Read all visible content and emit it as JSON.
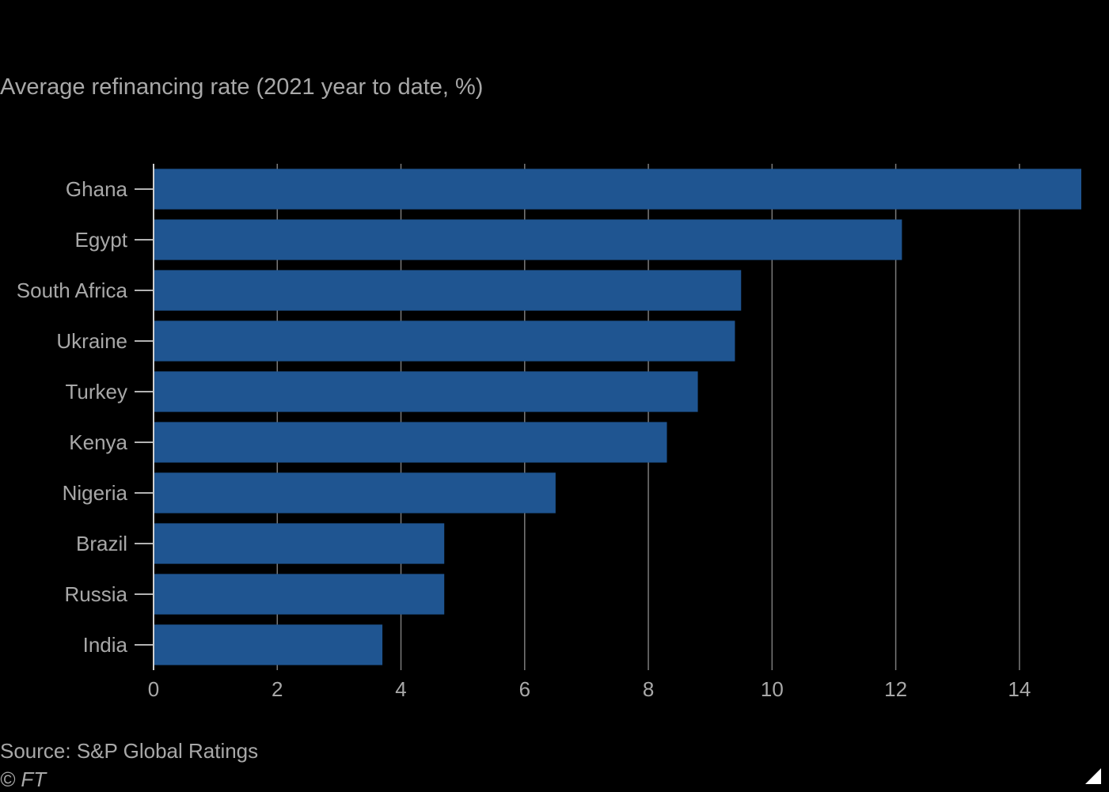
{
  "chart_data": {
    "type": "bar",
    "orientation": "horizontal",
    "title": "",
    "subtitle": "Average refinancing rate (2021 year to date, %)",
    "categories": [
      "Ghana",
      "Egypt",
      "South Africa",
      "Ukraine",
      "Turkey",
      "Kenya",
      "Nigeria",
      "Brazil",
      "Russia",
      "India"
    ],
    "values": [
      15.0,
      12.1,
      9.5,
      9.4,
      8.8,
      8.3,
      6.5,
      4.7,
      4.7,
      3.7
    ],
    "xlabel": "",
    "ylabel": "",
    "xlim": [
      0,
      15
    ],
    "xticks": [
      0,
      2,
      4,
      6,
      8,
      10,
      12,
      14
    ],
    "grid": "vertical",
    "legend": "none",
    "bar_color": "#1f5591",
    "gridline_color": "#7a7a7a",
    "background": "#000000"
  },
  "footer": {
    "source": "Source: S&P Global Ratings",
    "copyright": "© FT"
  },
  "icons": {
    "corner": "triangle-resize-icon"
  }
}
